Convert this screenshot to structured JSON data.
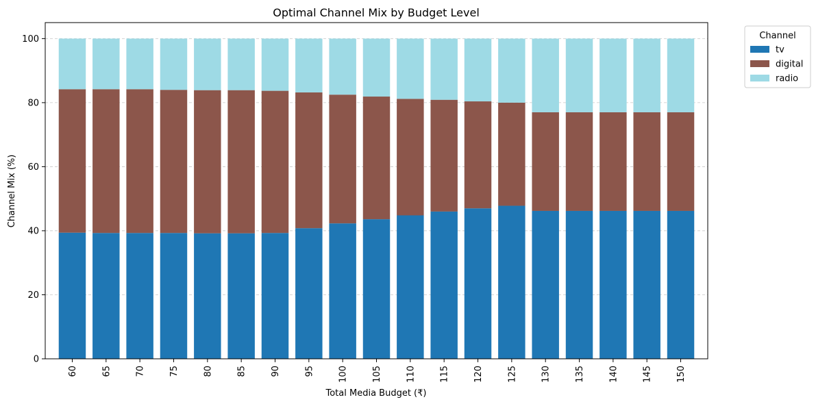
{
  "chart_data": {
    "type": "bar",
    "stacked": true,
    "title": "Optimal Channel Mix by Budget Level",
    "xlabel": "Total Media Budget (₹)",
    "ylabel": "Channel Mix (%)",
    "ylim": [
      0,
      105
    ],
    "yticks": [
      0,
      20,
      40,
      60,
      80,
      100
    ],
    "grid": "y-dashed",
    "legend_title": "Channel",
    "legend_position": "outside-top-right",
    "categories": [
      "60",
      "65",
      "70",
      "75",
      "80",
      "85",
      "90",
      "95",
      "100",
      "105",
      "110",
      "115",
      "120",
      "125",
      "130",
      "135",
      "140",
      "145",
      "150"
    ],
    "series": [
      {
        "name": "tv",
        "color": "#1f77b4",
        "values": [
          39.4,
          39.3,
          39.3,
          39.3,
          39.2,
          39.2,
          39.3,
          40.8,
          42.3,
          43.6,
          44.8,
          46.0,
          47.0,
          47.8,
          46.2,
          46.2,
          46.2,
          46.2,
          46.2
        ]
      },
      {
        "name": "digital",
        "color": "#8c564b",
        "values": [
          44.8,
          44.9,
          44.9,
          44.7,
          44.7,
          44.7,
          44.4,
          42.4,
          40.2,
          38.3,
          36.4,
          34.9,
          33.4,
          32.2,
          30.8,
          30.8,
          30.8,
          30.8,
          30.8
        ]
      },
      {
        "name": "radio",
        "color": "#9edae5",
        "values": [
          15.8,
          15.8,
          15.8,
          16.0,
          16.1,
          16.1,
          16.3,
          16.8,
          17.5,
          18.1,
          18.8,
          19.1,
          19.6,
          20.0,
          23.0,
          23.0,
          23.0,
          23.0,
          23.0
        ]
      }
    ]
  }
}
